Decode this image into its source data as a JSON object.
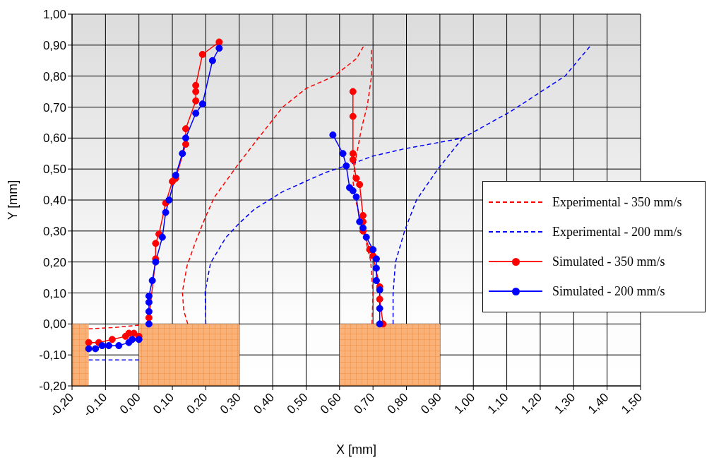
{
  "chart_data": {
    "type": "line",
    "xlabel": "X [mm]",
    "ylabel": "Y [mm]",
    "xlim": [
      -0.2,
      1.5
    ],
    "ylim": [
      -0.2,
      1.0
    ],
    "xticks": [
      {
        "value": -0.2,
        "label": "-0,20"
      },
      {
        "value": -0.1,
        "label": "-0,10"
      },
      {
        "value": 0,
        "label": "0,00"
      },
      {
        "value": 0.1,
        "label": "0,10"
      },
      {
        "value": 0.2,
        "label": "0,20"
      },
      {
        "value": 0.3,
        "label": "0,30"
      },
      {
        "value": 0.4,
        "label": "0,40"
      },
      {
        "value": 0.5,
        "label": "0,50"
      },
      {
        "value": 0.6,
        "label": "0,60"
      },
      {
        "value": 0.7,
        "label": "0,70"
      },
      {
        "value": 0.8,
        "label": "0,80"
      },
      {
        "value": 0.9,
        "label": "0,90"
      },
      {
        "value": 1.0,
        "label": "1,00"
      },
      {
        "value": 1.1,
        "label": "1,10"
      },
      {
        "value": 1.2,
        "label": "1,20"
      },
      {
        "value": 1.3,
        "label": "1,30"
      },
      {
        "value": 1.4,
        "label": "1,40"
      },
      {
        "value": 1.5,
        "label": "1,50"
      }
    ],
    "yticks": [
      {
        "value": -0.2,
        "label": "-0,20"
      },
      {
        "value": -0.1,
        "label": "-0,10"
      },
      {
        "value": 0,
        "label": "0,00"
      },
      {
        "value": 0.1,
        "label": "0,10"
      },
      {
        "value": 0.2,
        "label": "0,20"
      },
      {
        "value": 0.3,
        "label": "0,30"
      },
      {
        "value": 0.4,
        "label": "0,40"
      },
      {
        "value": 0.5,
        "label": "0,50"
      },
      {
        "value": 0.6,
        "label": "0,60"
      },
      {
        "value": 0.7,
        "label": "0,70"
      },
      {
        "value": 0.8,
        "label": "0,80"
      },
      {
        "value": 0.9,
        "label": "0,90"
      },
      {
        "value": 1.0,
        "label": "1,00"
      }
    ],
    "grid": true,
    "legend": "right",
    "series": [
      {
        "type": "area",
        "color": "#f79646",
        "x": [
          -0.2,
          -0.15
        ],
        "values": [
          -0.2,
          -0.2
        ]
      },
      {
        "type": "area",
        "color": "#f79646",
        "x": [
          0,
          0.3
        ],
        "values": [
          -0.2,
          -0.2
        ]
      },
      {
        "type": "area",
        "color": "#f79646",
        "x": [
          0.6,
          0.9
        ],
        "values": [
          -0.2,
          -0.2
        ]
      },
      {
        "name": "Experimental - 350 mm/s",
        "color": "#ff0000",
        "marker": "none",
        "line_style": "dashed",
        "x": [
          -0.15,
          -0.08,
          0.0
        ],
        "values": [
          -0.016,
          -0.012,
          -0.004
        ]
      },
      {
        "color": "#ff0000",
        "marker": "none",
        "line_style": "dashed",
        "x": [
          0.146,
          0.134,
          0.13,
          0.144,
          0.169,
          0.197,
          0.225,
          0.3,
          0.345,
          0.43,
          0.5,
          0.584,
          0.651,
          0.671
        ],
        "values": [
          0.0,
          0.043,
          0.104,
          0.188,
          0.264,
          0.34,
          0.408,
          0.52,
          0.583,
          0.7,
          0.76,
          0.8,
          0.857,
          0.895
        ]
      },
      {
        "color": "#ff0000",
        "marker": "none",
        "line_style": "dashed",
        "x": [
          0.697,
          0.7,
          0.693,
          0.676,
          0.648,
          0.64,
          0.648,
          0.665,
          0.683,
          0.695,
          0.695
        ],
        "values": [
          0.0,
          0.097,
          0.203,
          0.279,
          0.4,
          0.462,
          0.53,
          0.629,
          0.705,
          0.796,
          0.884
        ]
      },
      {
        "name": "Experimental - 200 mm/s",
        "color": "#0000ff",
        "marker": "none",
        "line_style": "dashed",
        "x": [
          -0.15,
          0.0
        ],
        "values": [
          -0.116,
          -0.116
        ]
      },
      {
        "color": "#0000ff",
        "marker": "none",
        "line_style": "dashed",
        "x": [
          0.2,
          0.198,
          0.214,
          0.26,
          0.3,
          0.345,
          0.43,
          0.556,
          0.64,
          0.697,
          0.788,
          0.968,
          1.112,
          1.274,
          1.348
        ],
        "values": [
          0.0,
          0.104,
          0.196,
          0.279,
          0.325,
          0.37,
          0.427,
          0.488,
          0.518,
          0.541,
          0.564,
          0.6,
          0.686,
          0.8,
          0.895
        ]
      },
      {
        "color": "#0000ff",
        "marker": "none",
        "line_style": "dashed",
        "x": [
          0.968,
          0.894,
          0.83,
          0.795,
          0.767,
          0.76,
          0.76
        ],
        "values": [
          0.6,
          0.5,
          0.4,
          0.302,
          0.199,
          0.097,
          0.0
        ]
      },
      {
        "name": "Simulated - 350 mm/s",
        "color": "#ff0000",
        "marker": "circle",
        "line_style": "solid",
        "x": [
          -0.15,
          -0.12,
          -0.08,
          -0.04,
          -0.03,
          -0.015,
          0.0
        ],
        "values": [
          -0.06,
          -0.06,
          -0.05,
          -0.04,
          -0.03,
          -0.03,
          -0.04
        ]
      },
      {
        "color": "#ff0000",
        "marker": "circle",
        "line_style": "solid",
        "x": [
          0.03,
          0.05,
          0.05,
          0.06,
          0.08,
          0.1,
          0.11,
          0.14,
          0.14,
          0.17,
          0.17,
          0.17,
          0.19,
          0.24
        ],
        "values": [
          0.02,
          0.21,
          0.26,
          0.29,
          0.39,
          0.46,
          0.47,
          0.58,
          0.63,
          0.72,
          0.75,
          0.77,
          0.87,
          0.91
        ]
      },
      {
        "color": "#ff0000",
        "marker": "circle",
        "line_style": "solid",
        "x": [
          0.64,
          0.64,
          0.64,
          0.64,
          0.65,
          0.66,
          0.67,
          0.67,
          0.67,
          0.69,
          0.7,
          0.72,
          0.72,
          0.73
        ],
        "values": [
          0.75,
          0.67,
          0.55,
          0.53,
          0.47,
          0.45,
          0.35,
          0.33,
          0.3,
          0.24,
          0.22,
          0.12,
          0.08,
          0.0
        ]
      },
      {
        "name": "Simulated - 200 mm/s",
        "color": "#0000ff",
        "marker": "circle",
        "line_style": "solid",
        "x": [
          -0.15,
          -0.13,
          -0.11,
          -0.09,
          -0.06,
          -0.03,
          -0.02,
          0.0
        ],
        "values": [
          -0.08,
          -0.08,
          -0.07,
          -0.07,
          -0.07,
          -0.06,
          -0.05,
          -0.05
        ]
      },
      {
        "color": "#0000ff",
        "marker": "circle",
        "line_style": "solid",
        "x": [
          0.03,
          0.03,
          0.03,
          0.03,
          0.04,
          0.05,
          0.07,
          0.08,
          0.09,
          0.11,
          0.13,
          0.14,
          0.17,
          0.19,
          0.22,
          0.24
        ],
        "values": [
          0.0,
          0.04,
          0.07,
          0.09,
          0.14,
          0.2,
          0.28,
          0.36,
          0.4,
          0.48,
          0.55,
          0.6,
          0.68,
          0.71,
          0.85,
          0.89
        ]
      },
      {
        "color": "#0000ff",
        "marker": "circle",
        "line_style": "solid",
        "x": [
          0.58,
          0.61,
          0.62,
          0.63,
          0.64,
          0.65,
          0.66,
          0.67,
          0.68,
          0.7,
          0.71,
          0.71,
          0.71,
          0.72,
          0.72,
          0.72
        ],
        "values": [
          0.61,
          0.55,
          0.51,
          0.44,
          0.43,
          0.41,
          0.33,
          0.31,
          0.28,
          0.24,
          0.21,
          0.18,
          0.14,
          0.11,
          0.05,
          0.0
        ]
      }
    ]
  }
}
